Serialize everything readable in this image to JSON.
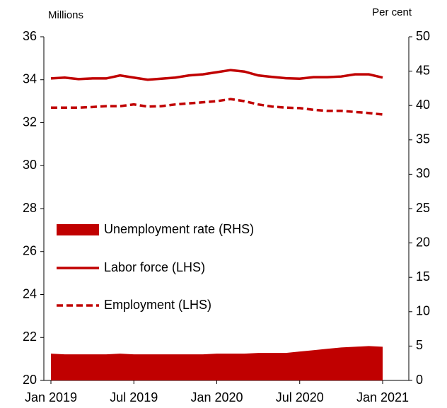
{
  "chart_data": {
    "type": "line",
    "y_label": "Millions",
    "y2_label": "Per cent",
    "categories": [
      "Jan 2019",
      null,
      null,
      null,
      null,
      null,
      "Jul 2019",
      null,
      null,
      null,
      null,
      null,
      "Jan 2020",
      null,
      null,
      null,
      null,
      null,
      "Jul 2020",
      null,
      null,
      null,
      null,
      null,
      "Jan 2021"
    ],
    "series": [
      {
        "name": "Unemployment rate (RHS)",
        "color": "#c00000",
        "style": "area",
        "axis": "y2",
        "values": [
          3.9,
          3.8,
          3.8,
          3.8,
          3.8,
          3.9,
          3.8,
          3.8,
          3.8,
          3.8,
          3.8,
          3.8,
          3.9,
          3.9,
          3.9,
          4.0,
          4.0,
          4.0,
          4.2,
          4.4,
          4.6,
          4.8,
          4.9,
          5.0,
          4.9
        ]
      },
      {
        "name": "Labor force (LHS)",
        "color": "#c00000",
        "style": "solid",
        "values": [
          34.06,
          34.1,
          34.03,
          34.06,
          34.06,
          34.2,
          34.1,
          34.0,
          34.05,
          34.1,
          34.2,
          34.25,
          34.35,
          34.45,
          34.38,
          34.2,
          34.13,
          34.07,
          34.05,
          34.12,
          34.12,
          34.15,
          34.25,
          34.25,
          34.1
        ]
      },
      {
        "name": "Employment (LHS)",
        "color": "#c00000",
        "style": "dashed",
        "values": [
          32.7,
          32.7,
          32.7,
          32.73,
          32.77,
          32.77,
          32.85,
          32.75,
          32.77,
          32.85,
          32.9,
          32.95,
          33.0,
          33.1,
          33.0,
          32.85,
          32.75,
          32.7,
          32.68,
          32.6,
          32.55,
          32.55,
          32.5,
          32.45,
          32.38
        ]
      }
    ],
    "ylim": [
      20,
      36
    ],
    "yticks": [
      20,
      22,
      24,
      26,
      28,
      30,
      32,
      34,
      36
    ],
    "y2lim": [
      0,
      50
    ],
    "y2ticks": [
      0,
      5,
      10,
      15,
      20,
      25,
      30,
      35,
      40,
      45,
      50
    ],
    "grid": false,
    "legend": "left"
  }
}
